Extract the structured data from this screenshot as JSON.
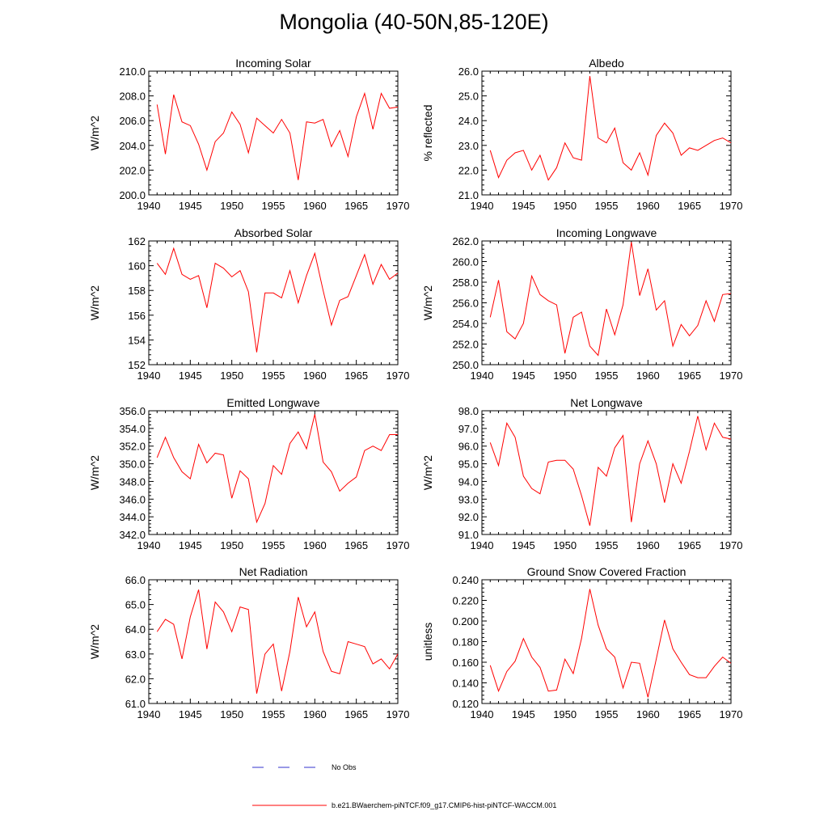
{
  "title": "Mongolia (40-50N,85-120E)",
  "legend": {
    "obs_label": "No Obs",
    "model_label": "b.e21.BWaerchem-piNTCF.f09_g17.CMIP6-hist-piNTCF-WACCM.001",
    "obs_color": "#3333cc",
    "model_color": "#ff0000"
  },
  "chart_data": [
    {
      "type": "line",
      "title": "Incoming Solar",
      "ylabel": "W/m^2",
      "x": [
        1941,
        1942,
        1943,
        1944,
        1945,
        1946,
        1947,
        1948,
        1949,
        1950,
        1951,
        1952,
        1953,
        1954,
        1955,
        1956,
        1957,
        1958,
        1959,
        1960,
        1961,
        1962,
        1963,
        1964,
        1965,
        1966,
        1967,
        1968,
        1969,
        1970
      ],
      "series": [
        {
          "values": [
            207.3,
            203.3,
            208.1,
            205.9,
            205.6,
            204.1,
            202.0,
            204.3,
            205.0,
            206.7,
            205.7,
            203.4,
            206.2,
            205.6,
            205.0,
            206.1,
            205.0,
            201.2,
            205.9,
            205.8,
            206.1,
            203.9,
            205.2,
            203.1,
            206.3,
            208.2,
            205.3,
            208.2,
            207.0,
            207.1
          ]
        }
      ],
      "xlim": [
        1940,
        1970
      ],
      "ylim": [
        200,
        210
      ],
      "yticks": [
        "200.0",
        "202.0",
        "204.0",
        "206.0",
        "208.0",
        "210.0"
      ],
      "xticks": [
        "1940",
        "1945",
        "1950",
        "1955",
        "1960",
        "1965",
        "1970"
      ]
    },
    {
      "type": "line",
      "title": "Albedo",
      "ylabel": "% reflected",
      "x": [
        1941,
        1942,
        1943,
        1944,
        1945,
        1946,
        1947,
        1948,
        1949,
        1950,
        1951,
        1952,
        1953,
        1954,
        1955,
        1956,
        1957,
        1958,
        1959,
        1960,
        1961,
        1962,
        1963,
        1964,
        1965,
        1966,
        1967,
        1968,
        1969,
        1970
      ],
      "series": [
        {
          "values": [
            22.8,
            21.7,
            22.4,
            22.7,
            22.8,
            22.0,
            22.6,
            21.6,
            22.1,
            23.1,
            22.5,
            22.4,
            25.8,
            23.3,
            23.1,
            23.7,
            22.3,
            22.0,
            22.7,
            21.8,
            23.4,
            23.9,
            23.5,
            22.6,
            22.9,
            22.8,
            23.0,
            23.2,
            23.3,
            23.1
          ]
        }
      ],
      "xlim": [
        1940,
        1970
      ],
      "ylim": [
        21,
        26
      ],
      "yticks": [
        "21.0",
        "22.0",
        "23.0",
        "24.0",
        "25.0",
        "26.0"
      ],
      "xticks": [
        "1940",
        "1945",
        "1950",
        "1955",
        "1960",
        "1965",
        "1970"
      ]
    },
    {
      "type": "line",
      "title": "Absorbed Solar",
      "ylabel": "W/m^2",
      "x": [
        1941,
        1942,
        1943,
        1944,
        1945,
        1946,
        1947,
        1948,
        1949,
        1950,
        1951,
        1952,
        1953,
        1954,
        1955,
        1956,
        1957,
        1958,
        1959,
        1960,
        1961,
        1962,
        1963,
        1964,
        1965,
        1966,
        1967,
        1968,
        1969,
        1970
      ],
      "series": [
        {
          "values": [
            160.2,
            159.3,
            161.4,
            159.3,
            158.9,
            159.2,
            156.6,
            160.2,
            159.8,
            159.1,
            159.6,
            157.9,
            153.0,
            157.8,
            157.8,
            157.4,
            159.6,
            157.0,
            159.2,
            161.0,
            158.0,
            155.2,
            157.2,
            157.5,
            159.2,
            160.9,
            158.5,
            160.1,
            158.9,
            159.4
          ]
        }
      ],
      "xlim": [
        1940,
        1970
      ],
      "ylim": [
        152,
        162
      ],
      "yticks": [
        "152",
        "154",
        "156",
        "158",
        "160",
        "162"
      ],
      "xticks": [
        "1940",
        "1945",
        "1950",
        "1955",
        "1960",
        "1965",
        "1970"
      ]
    },
    {
      "type": "line",
      "title": "Incoming Longwave",
      "ylabel": "W/m^2",
      "x": [
        1941,
        1942,
        1943,
        1944,
        1945,
        1946,
        1947,
        1948,
        1949,
        1950,
        1951,
        1952,
        1953,
        1954,
        1955,
        1956,
        1957,
        1958,
        1959,
        1960,
        1961,
        1962,
        1963,
        1964,
        1965,
        1966,
        1967,
        1968,
        1969,
        1970
      ],
      "series": [
        {
          "values": [
            254.6,
            258.2,
            253.2,
            252.5,
            254.0,
            258.6,
            256.8,
            256.2,
            255.8,
            251.1,
            254.6,
            255.1,
            251.8,
            250.9,
            255.4,
            252.9,
            255.8,
            261.9,
            256.7,
            259.3,
            255.3,
            256.2,
            251.8,
            253.9,
            252.8,
            253.8,
            256.2,
            254.2,
            256.8,
            256.9
          ]
        }
      ],
      "xlim": [
        1940,
        1970
      ],
      "ylim": [
        250,
        262
      ],
      "yticks": [
        "250.0",
        "252.0",
        "254.0",
        "256.0",
        "258.0",
        "260.0",
        "262.0"
      ],
      "xticks": [
        "1940",
        "1945",
        "1950",
        "1955",
        "1960",
        "1965",
        "1970"
      ]
    },
    {
      "type": "line",
      "title": "Emitted Longwave",
      "ylabel": "W/m^2",
      "x": [
        1941,
        1942,
        1943,
        1944,
        1945,
        1946,
        1947,
        1948,
        1949,
        1950,
        1951,
        1952,
        1953,
        1954,
        1955,
        1956,
        1957,
        1958,
        1959,
        1960,
        1961,
        1962,
        1963,
        1964,
        1965,
        1966,
        1967,
        1968,
        1969,
        1970
      ],
      "series": [
        {
          "values": [
            350.7,
            353.0,
            350.7,
            349.1,
            348.3,
            352.2,
            350.1,
            351.2,
            351.0,
            346.1,
            349.2,
            348.3,
            343.4,
            345.5,
            349.8,
            348.8,
            352.3,
            353.6,
            351.7,
            355.6,
            350.2,
            349.1,
            346.9,
            347.8,
            348.5,
            351.5,
            352.0,
            351.5,
            353.3,
            353.3
          ]
        }
      ],
      "xlim": [
        1940,
        1970
      ],
      "ylim": [
        342,
        356
      ],
      "yticks": [
        "342.0",
        "344.0",
        "346.0",
        "348.0",
        "350.0",
        "352.0",
        "354.0",
        "356.0"
      ],
      "xticks": [
        "1940",
        "1945",
        "1950",
        "1955",
        "1960",
        "1965",
        "1970"
      ]
    },
    {
      "type": "line",
      "title": "Net Longwave",
      "ylabel": "W/m^2",
      "x": [
        1941,
        1942,
        1943,
        1944,
        1945,
        1946,
        1947,
        1948,
        1949,
        1950,
        1951,
        1952,
        1953,
        1954,
        1955,
        1956,
        1957,
        1958,
        1959,
        1960,
        1961,
        1962,
        1963,
        1964,
        1965,
        1966,
        1967,
        1968,
        1969,
        1970
      ],
      "series": [
        {
          "values": [
            96.2,
            94.9,
            97.3,
            96.5,
            94.3,
            93.6,
            93.3,
            95.1,
            95.2,
            95.2,
            94.7,
            93.2,
            91.5,
            94.8,
            94.3,
            95.9,
            96.6,
            91.7,
            95.0,
            96.3,
            95.0,
            92.8,
            95.0,
            93.9,
            95.7,
            97.7,
            95.8,
            97.3,
            96.5,
            96.4
          ]
        }
      ],
      "xlim": [
        1940,
        1970
      ],
      "ylim": [
        91,
        98
      ],
      "yticks": [
        "91.0",
        "92.0",
        "93.0",
        "94.0",
        "95.0",
        "96.0",
        "97.0",
        "98.0"
      ],
      "xticks": [
        "1940",
        "1945",
        "1950",
        "1955",
        "1960",
        "1965",
        "1970"
      ]
    },
    {
      "type": "line",
      "title": "Net Radiation",
      "ylabel": "W/m^2",
      "x": [
        1941,
        1942,
        1943,
        1944,
        1945,
        1946,
        1947,
        1948,
        1949,
        1950,
        1951,
        1952,
        1953,
        1954,
        1955,
        1956,
        1957,
        1958,
        1959,
        1960,
        1961,
        1962,
        1963,
        1964,
        1965,
        1966,
        1967,
        1968,
        1969,
        1970
      ],
      "series": [
        {
          "values": [
            63.9,
            64.4,
            64.2,
            62.8,
            64.5,
            65.6,
            63.2,
            65.1,
            64.7,
            63.9,
            64.9,
            64.8,
            61.4,
            63.0,
            63.4,
            61.5,
            63.1,
            65.3,
            64.1,
            64.7,
            63.1,
            62.3,
            62.2,
            63.5,
            63.4,
            63.3,
            62.6,
            62.8,
            62.4,
            63.0
          ]
        }
      ],
      "xlim": [
        1940,
        1970
      ],
      "ylim": [
        61,
        66
      ],
      "yticks": [
        "61.0",
        "62.0",
        "63.0",
        "64.0",
        "65.0",
        "66.0"
      ],
      "xticks": [
        "1940",
        "1945",
        "1950",
        "1955",
        "1960",
        "1965",
        "1970"
      ]
    },
    {
      "type": "line",
      "title": "Ground Snow Covered Fraction",
      "ylabel": "unitless",
      "x": [
        1941,
        1942,
        1943,
        1944,
        1945,
        1946,
        1947,
        1948,
        1949,
        1950,
        1951,
        1952,
        1953,
        1954,
        1955,
        1956,
        1957,
        1958,
        1959,
        1960,
        1961,
        1962,
        1963,
        1964,
        1965,
        1966,
        1967,
        1968,
        1969,
        1970
      ],
      "series": [
        {
          "values": [
            0.157,
            0.132,
            0.151,
            0.161,
            0.183,
            0.165,
            0.155,
            0.132,
            0.133,
            0.163,
            0.149,
            0.183,
            0.231,
            0.196,
            0.173,
            0.165,
            0.135,
            0.16,
            0.159,
            0.126,
            0.163,
            0.201,
            0.173,
            0.16,
            0.148,
            0.145,
            0.145,
            0.156,
            0.165,
            0.159
          ]
        }
      ],
      "xlim": [
        1940,
        1970
      ],
      "ylim": [
        0.12,
        0.24
      ],
      "yticks": [
        "0.120",
        "0.140",
        "0.160",
        "0.180",
        "0.200",
        "0.220",
        "0.240"
      ],
      "xticks": [
        "1940",
        "1945",
        "1950",
        "1955",
        "1960",
        "1965",
        "1970"
      ]
    }
  ]
}
